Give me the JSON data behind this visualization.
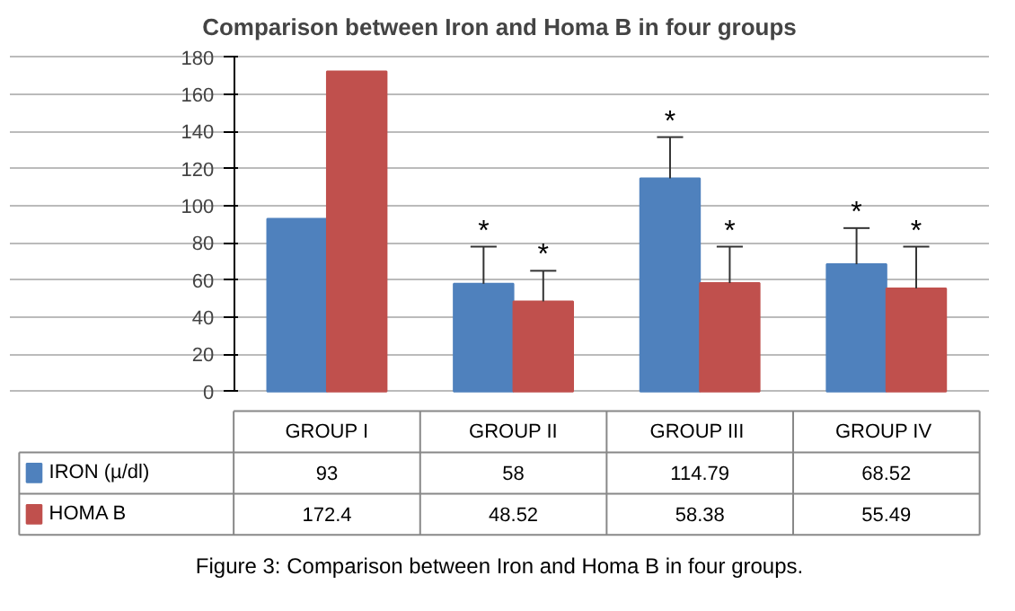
{
  "chart_data": {
    "type": "bar",
    "title": "Comparison between Iron and Homa B in four groups",
    "categories": [
      "GROUP I",
      "GROUP II",
      "GROUP  III",
      "GROUP  IV"
    ],
    "series": [
      {
        "name": "IRON (µ/dl)",
        "color": "#4f81bd",
        "values": [
          93,
          58,
          114.79,
          68.52
        ],
        "value_labels": [
          "93",
          "58",
          "114.79",
          "68.52"
        ],
        "errors": [
          null,
          [
            58,
            78
          ],
          [
            114.79,
            137
          ],
          [
            68.52,
            88
          ]
        ]
      },
      {
        "name": "HOMA B",
        "color": "#c0504d",
        "values": [
          172.4,
          48.52,
          58.38,
          55.49
        ],
        "value_labels": [
          "172.4",
          "48.52",
          "58.38",
          "55.49"
        ],
        "errors": [
          null,
          [
            48.52,
            65
          ],
          [
            58.38,
            78
          ],
          [
            55.49,
            78
          ]
        ]
      }
    ],
    "ylim": [
      0,
      180
    ],
    "yticks": [
      0,
      20,
      40,
      60,
      80,
      100,
      120,
      140,
      160,
      180
    ],
    "grid": "y",
    "legend": "bottom",
    "annotations": [
      "*",
      "*",
      "*",
      "*",
      "*",
      "*",
      "Figure 3: Comparison between Iron and Homa B in four groups."
    ]
  }
}
